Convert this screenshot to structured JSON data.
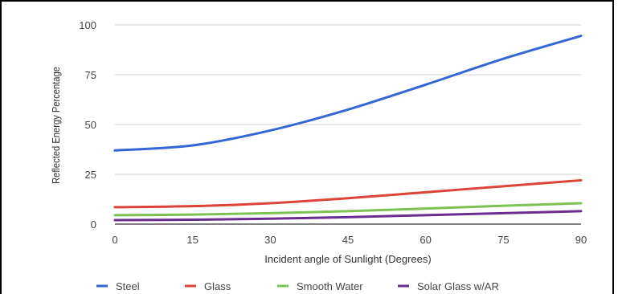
{
  "chart_data": {
    "type": "line",
    "xlabel": "Incident angle of Sunlight (Degrees)",
    "ylabel": "Reflected Energy Percentage",
    "x": [
      0,
      15,
      30,
      45,
      60,
      75,
      90
    ],
    "x_ticks": [
      "0",
      "15",
      "30",
      "45",
      "60",
      "75",
      "90"
    ],
    "y_ticks": [
      "0",
      "25",
      "50",
      "75",
      "100"
    ],
    "xlim": [
      0,
      90
    ],
    "ylim": [
      0,
      100
    ],
    "grid": "horizontal",
    "legend_position": "bottom",
    "series": [
      {
        "name": "Steel",
        "color": "#3367d6",
        "values": [
          37,
          39.5,
          47,
          57.5,
          70,
          83,
          94.5
        ]
      },
      {
        "name": "Glass",
        "color": "#db4437",
        "values": [
          8.5,
          9,
          10.5,
          13,
          16,
          19,
          22
        ]
      },
      {
        "name": "Smooth Water",
        "color": "#7cc353",
        "values": [
          4.5,
          4.8,
          5.5,
          6.5,
          7.8,
          9.2,
          10.5
        ]
      },
      {
        "name": "Solar Glass w/AR",
        "color": "#6a2c91",
        "values": [
          2,
          2.2,
          2.7,
          3.5,
          4.5,
          5.5,
          6.5
        ]
      }
    ]
  }
}
